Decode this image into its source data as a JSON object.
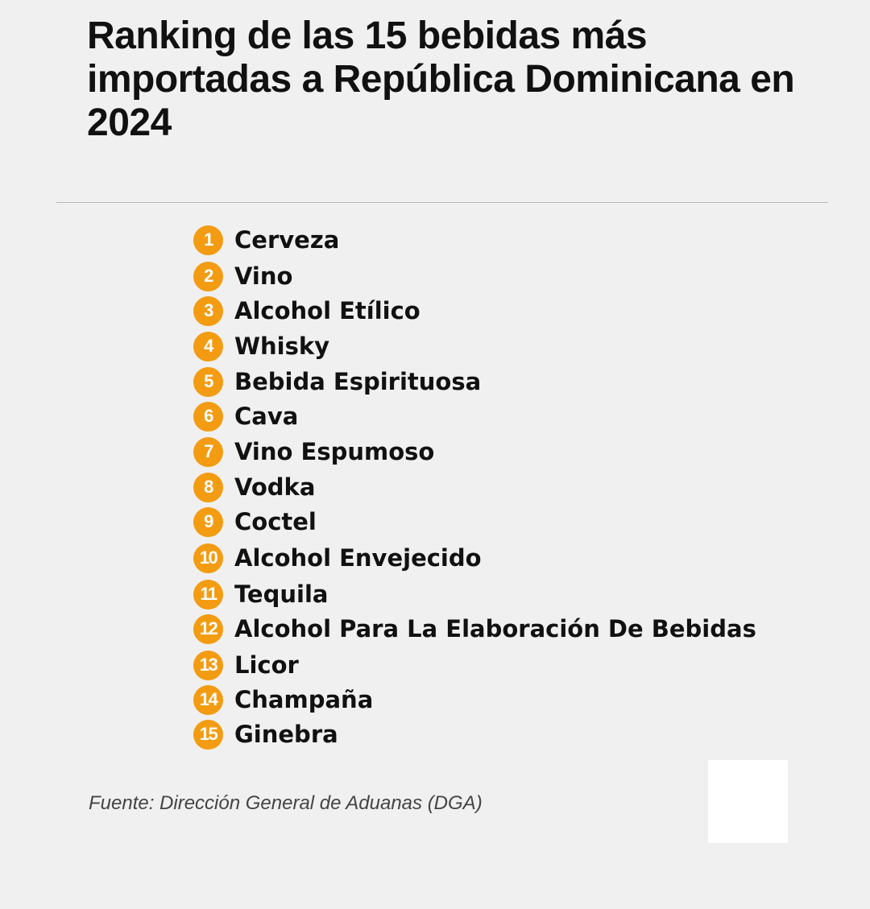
{
  "title": "Ranking de las 15 bebidas más importadas a República Dominicana en 2024",
  "accent_color": "#f39c12",
  "ranking": [
    {
      "number": "1",
      "name": "Cerveza"
    },
    {
      "number": "2",
      "name": "Vino"
    },
    {
      "number": "3",
      "name": "Alcohol Etílico"
    },
    {
      "number": "4",
      "name": "Whisky"
    },
    {
      "number": "5",
      "name": "Bebida Espirituosa"
    },
    {
      "number": "6",
      "name": "Cava"
    },
    {
      "number": "7",
      "name": "Vino Espumoso"
    },
    {
      "number": "8",
      "name": "Vodka"
    },
    {
      "number": "9",
      "name": "Coctel"
    },
    {
      "number": "10",
      "name": "Alcohol Envejecido"
    },
    {
      "number": "11",
      "name": "Tequila"
    },
    {
      "number": "12",
      "name": "Alcohol Para La Elaboración De Bebidas"
    },
    {
      "number": "13",
      "name": "Licor"
    },
    {
      "number": "14",
      "name": "Champaña"
    },
    {
      "number": "15",
      "name": "Ginebra"
    }
  ],
  "source": "Fuente: Dirección General de Aduanas (DGA)"
}
